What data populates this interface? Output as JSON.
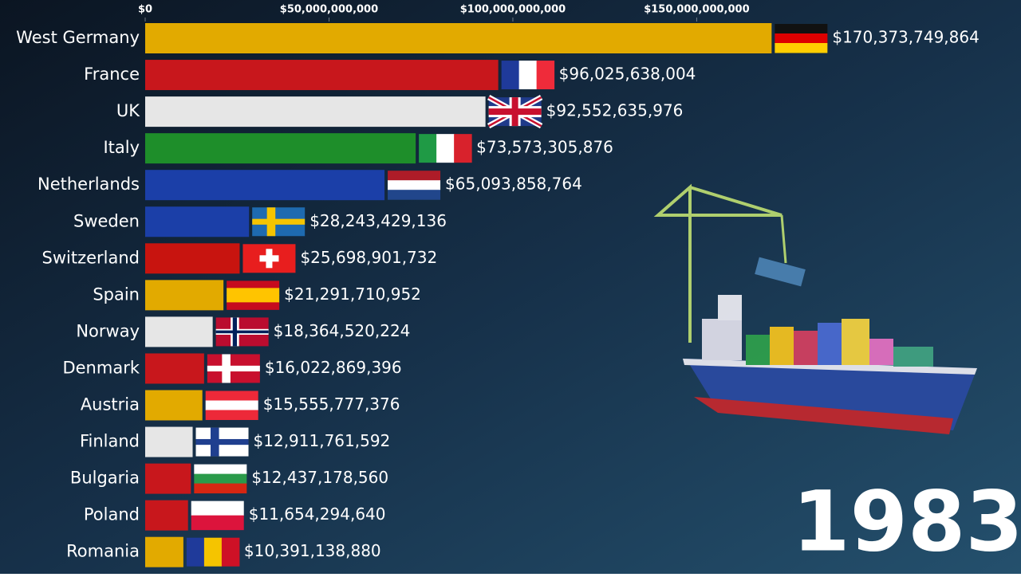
{
  "chart_data": {
    "type": "bar",
    "orientation": "horizontal",
    "categories": [
      "West Germany",
      "France",
      "UK",
      "Italy",
      "Netherlands",
      "Sweden",
      "Switzerland",
      "Spain",
      "Norway",
      "Denmark",
      "Austria",
      "Finland",
      "Bulgaria",
      "Poland",
      "Romania"
    ],
    "values": [
      170373749864,
      96025638004,
      92552635976,
      73573305876,
      65093858764,
      28243429136,
      25698901732,
      21291710952,
      18364520224,
      16022869396,
      15555777376,
      12911761592,
      12437178560,
      11654294640,
      10391138880
    ],
    "value_labels": [
      "$170,373,749,864",
      "$96,025,638,004",
      "$92,552,635,976",
      "$73,573,305,876",
      "$65,093,858,764",
      "$28,243,429,136",
      "$25,698,901,732",
      "$21,291,710,952",
      "$18,364,520,224",
      "$16,022,869,396",
      "$15,555,777,376",
      "$12,911,761,592",
      "$12,437,178,560",
      "$11,654,294,640",
      "$10,391,138,880"
    ],
    "colors": [
      "#e2aa00",
      "#c8171c",
      "#e6e6e6",
      "#1e8e2a",
      "#1b3fa8",
      "#1b3fa8",
      "#c8140f",
      "#e2aa00",
      "#e6e6e6",
      "#c8171c",
      "#e2aa00",
      "#e6e6e6",
      "#c8171c",
      "#c8171c",
      "#e2aa00"
    ],
    "xlim": [
      0,
      238200000000
    ],
    "xticks": [
      {
        "value": 0,
        "label": "$0"
      },
      {
        "value": 50000000000,
        "label": "$50,000,000,000"
      },
      {
        "value": 100000000000,
        "label": "$100,000,000,000"
      },
      {
        "value": 150000000000,
        "label": "$150,000,000,000"
      }
    ],
    "year": "1983"
  }
}
